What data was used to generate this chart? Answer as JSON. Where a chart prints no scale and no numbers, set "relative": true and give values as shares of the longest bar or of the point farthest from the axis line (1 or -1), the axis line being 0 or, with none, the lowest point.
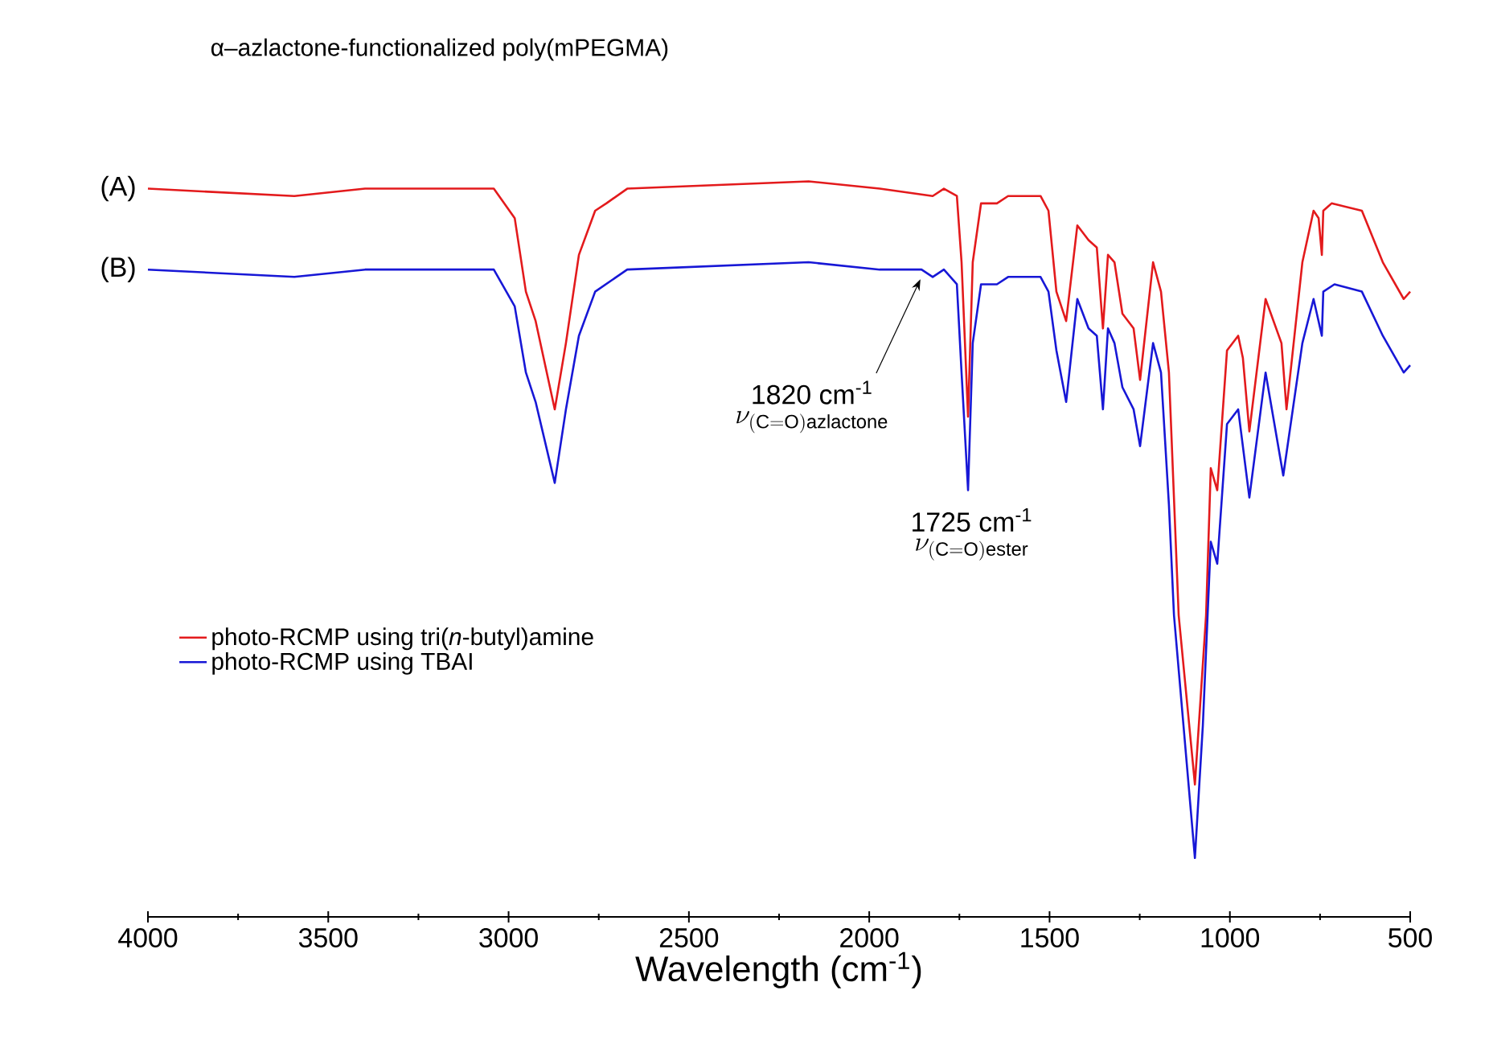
{
  "chart_data": {
    "type": "line",
    "title": "α–azlactone-functionalized poly(mPEGMA)",
    "xlabel": "Wavelength (cm$^{-1}$)",
    "relative": true,
    "xlim": [
      4000,
      500
    ],
    "xticks": [
      4000,
      3500,
      3000,
      2500,
      2000,
      1500,
      1000,
      500
    ],
    "legend": "left",
    "marker": "none",
    "line_style": "solid",
    "annotations": [
      "(A)",
      "(B)",
      "1820 cm$^{-1}$",
      "\\nu_{\\mathrm{(C{=}O)azlactone}}",
      {
        "text": "1725 cm$^{-1}$",
        "x": 1725,
        "y": 0.58
      },
      "\\nu_{\\mathrm{(C{=}O)ester}}"
    ],
    "series": [
      {
        "name": "photo-RCMP using tri(*n*-butyl)amine",
        "color": "#e31a1c",
        "x": [
          4000,
          3594,
          3398,
          3041,
          2983,
          2952,
          2925,
          2872,
          2841,
          2805,
          2760,
          2729,
          2671,
          2168,
          1971,
          1824,
          1793,
          1757,
          1744,
          1726,
          1713,
          1690,
          1646,
          1615,
          1525,
          1503,
          1481,
          1454,
          1423,
          1392,
          1369,
          1352,
          1338,
          1320,
          1298,
          1267,
          1249,
          1213,
          1191,
          1169,
          1142,
          1097,
          1066,
          1053,
          1035,
          1008,
          977,
          964,
          946,
          901,
          857,
          843,
          799,
          768,
          754,
          745,
          741,
          718,
          634,
          576,
          518,
          500
        ],
        "values": [
          0.99,
          0.98,
          0.99,
          0.99,
          0.95,
          0.85,
          0.81,
          0.69,
          0.78,
          0.9,
          0.96,
          0.97,
          0.99,
          1.0,
          0.99,
          0.98,
          0.99,
          0.98,
          0.89,
          0.68,
          0.89,
          0.97,
          0.97,
          0.98,
          0.98,
          0.96,
          0.85,
          0.81,
          0.94,
          0.92,
          0.91,
          0.8,
          0.9,
          0.89,
          0.82,
          0.8,
          0.73,
          0.89,
          0.85,
          0.74,
          0.41,
          0.18,
          0.41,
          0.61,
          0.58,
          0.77,
          0.79,
          0.76,
          0.66,
          0.84,
          0.78,
          0.69,
          0.89,
          0.96,
          0.95,
          0.9,
          0.96,
          0.97,
          0.96,
          0.89,
          0.84,
          0.85
        ]
      },
      {
        "name": "photo-RCMP using TBAI",
        "color": "#1717d6",
        "x": [
          4000,
          3594,
          3398,
          3041,
          2983,
          2952,
          2925,
          2872,
          2841,
          2805,
          2760,
          2671,
          2168,
          1971,
          1855,
          1824,
          1793,
          1757,
          1744,
          1726,
          1713,
          1690,
          1646,
          1615,
          1525,
          1503,
          1481,
          1454,
          1423,
          1392,
          1369,
          1352,
          1338,
          1320,
          1298,
          1267,
          1249,
          1213,
          1191,
          1169,
          1155,
          1097,
          1075,
          1053,
          1035,
          1008,
          977,
          946,
          901,
          852,
          799,
          768,
          745,
          741,
          710,
          634,
          576,
          518,
          500
        ],
        "values": [
          0.88,
          0.87,
          0.88,
          0.88,
          0.83,
          0.74,
          0.7,
          0.59,
          0.69,
          0.79,
          0.85,
          0.88,
          0.89,
          0.88,
          0.88,
          0.87,
          0.88,
          0.86,
          0.74,
          0.58,
          0.78,
          0.86,
          0.86,
          0.87,
          0.87,
          0.85,
          0.77,
          0.7,
          0.84,
          0.8,
          0.79,
          0.69,
          0.8,
          0.78,
          0.72,
          0.69,
          0.64,
          0.78,
          0.74,
          0.56,
          0.41,
          0.08,
          0.26,
          0.51,
          0.48,
          0.67,
          0.69,
          0.57,
          0.74,
          0.6,
          0.78,
          0.84,
          0.79,
          0.85,
          0.86,
          0.85,
          0.79,
          0.74,
          0.75
        ]
      }
    ]
  }
}
